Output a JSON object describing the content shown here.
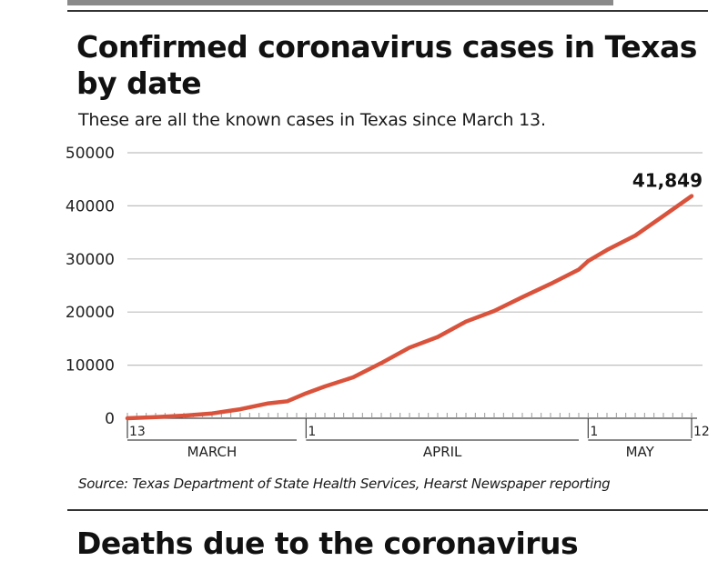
{
  "header": {
    "next_title": "Deaths due to the coronavirus"
  },
  "chart_data": {
    "type": "line",
    "title": "Confirmed coronavirus cases in Texas by date",
    "subtitle": "These are all the known cases in Texas since March 13.",
    "source": "Source: Texas Department of State Health Services, Hearst Newspaper reporting",
    "xlabel": "",
    "ylabel": "",
    "ylim": [
      0,
      50000
    ],
    "yticks": [
      0,
      10000,
      20000,
      30000,
      40000,
      50000
    ],
    "yticks_labels": [
      "0",
      "10000",
      "20000",
      "30000",
      "40000",
      "50000"
    ],
    "xlim": [
      "2020-03-13",
      "2020-05-12"
    ],
    "xticks": [
      {
        "date": "2020-03-13",
        "label": "13"
      },
      {
        "date": "2020-04-01",
        "label": "1"
      },
      {
        "date": "2020-05-01",
        "label": "1"
      },
      {
        "date": "2020-05-12",
        "label": "12"
      }
    ],
    "months": [
      {
        "name": "MARCH",
        "start": "2020-03-13",
        "end": "2020-03-31"
      },
      {
        "name": "APRIL",
        "start": "2020-04-01",
        "end": "2020-04-30"
      },
      {
        "name": "MAY",
        "start": "2020-05-01",
        "end": "2020-05-12"
      }
    ],
    "grid": true,
    "colors": {
      "line": "#d9533c",
      "grid": "#bfbfbf",
      "axis": "#444444"
    },
    "series": [
      {
        "x": [
          "2020-03-13",
          "2020-03-16",
          "2020-03-19",
          "2020-03-22",
          "2020-03-25",
          "2020-03-28",
          "2020-03-30",
          "2020-04-01",
          "2020-04-03",
          "2020-04-06",
          "2020-04-09",
          "2020-04-12",
          "2020-04-15",
          "2020-04-18",
          "2020-04-21",
          "2020-04-24",
          "2020-04-27",
          "2020-04-30",
          "2020-05-01",
          "2020-05-03",
          "2020-05-06",
          "2020-05-09",
          "2020-05-12"
        ],
        "values": [
          0,
          200,
          500,
          900,
          1700,
          2800,
          3200,
          4700,
          6000,
          7700,
          10400,
          13300,
          15300,
          18200,
          20200,
          22800,
          25300,
          28000,
          29600,
          31700,
          34400,
          38100,
          41849
        ]
      }
    ],
    "annotations": [
      {
        "date": "2020-05-12",
        "value": 41849,
        "text": "41,849"
      }
    ]
  }
}
